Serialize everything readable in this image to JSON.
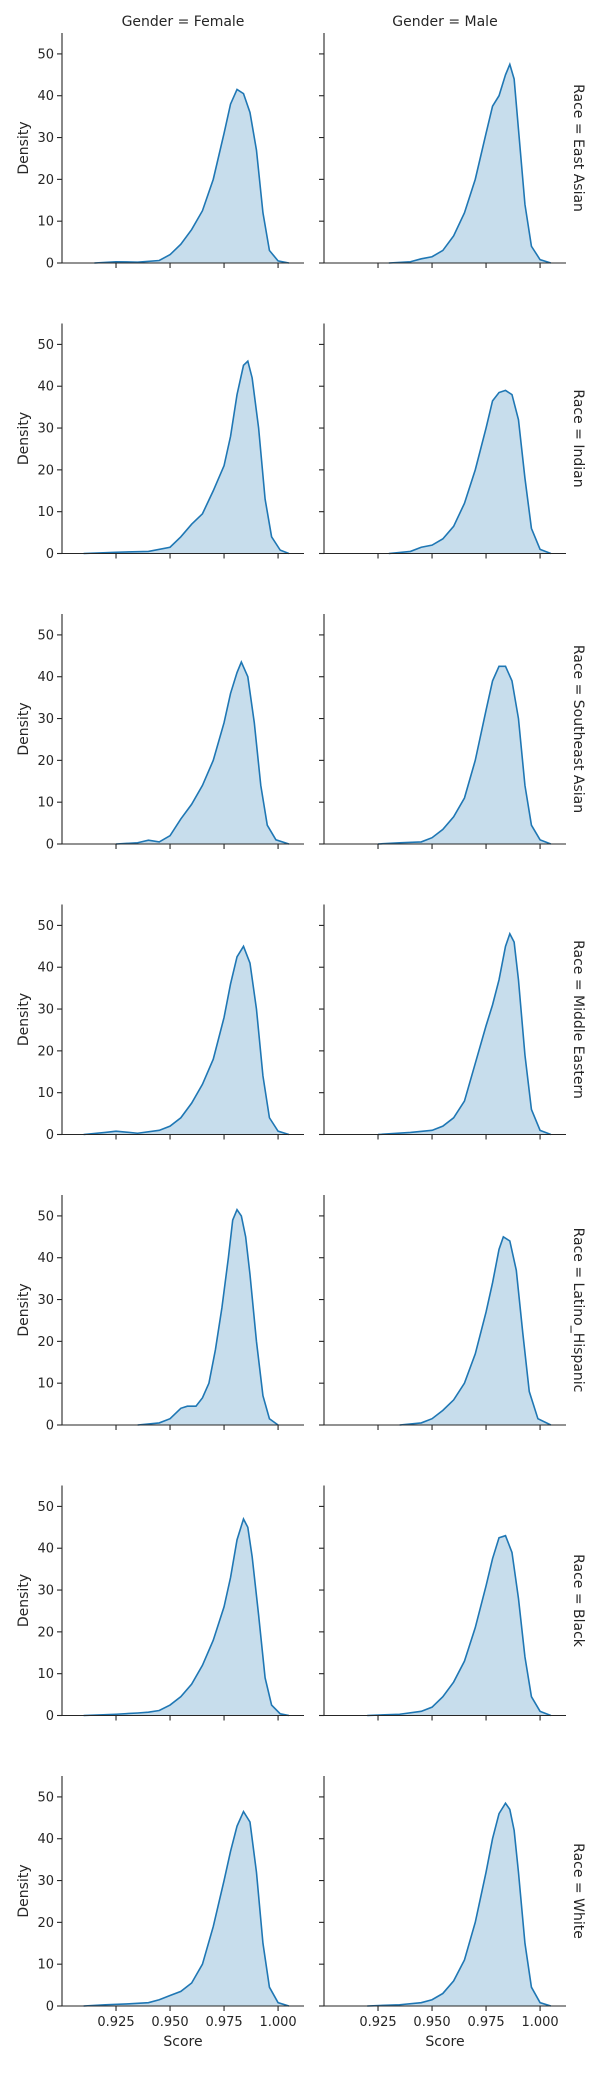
{
  "chart_data": {
    "type": "area",
    "kind": "kde facet grid",
    "col_var": "Gender",
    "row_var": "Race",
    "cols": [
      "Female",
      "Male"
    ],
    "rows": [
      "East Asian",
      "Indian",
      "Southeast Asian",
      "Middle Eastern",
      "Latino_Hispanic",
      "Black",
      "White"
    ],
    "col_titles": [
      "Gender = Female",
      "Gender = Male"
    ],
    "row_titles": [
      "Race = East Asian",
      "Race = Indian",
      "Race = Southeast Asian",
      "Race = Middle Eastern",
      "Race = Latino_Hispanic",
      "Race = Black",
      "Race = White"
    ],
    "xlabel": "Score",
    "ylabel": "Density",
    "xlim": [
      0.9,
      1.012
    ],
    "ylim": [
      0,
      55
    ],
    "xticks": [
      0.925,
      0.95,
      0.975,
      1.0
    ],
    "xtick_labels": [
      "0.925",
      "0.950",
      "0.975",
      "1.000"
    ],
    "yticks": [
      0,
      10,
      20,
      30,
      40,
      50
    ],
    "ytick_labels": [
      "0",
      "10",
      "20",
      "30",
      "40",
      "50"
    ],
    "color": "#1f77b4",
    "panels": [
      {
        "row": "East Asian",
        "col": "Female",
        "x": [
          0.915,
          0.925,
          0.935,
          0.945,
          0.95,
          0.955,
          0.96,
          0.965,
          0.97,
          0.975,
          0.978,
          0.981,
          0.984,
          0.987,
          0.99,
          0.993,
          0.996,
          1.0,
          1.005
        ],
        "y": [
          0.0,
          0.3,
          0.2,
          0.6,
          2.0,
          4.5,
          8.0,
          12.5,
          20.0,
          31.0,
          38.0,
          41.5,
          40.5,
          36.0,
          27.0,
          12.0,
          3.0,
          0.5,
          0.0
        ]
      },
      {
        "row": "East Asian",
        "col": "Male",
        "x": [
          0.93,
          0.94,
          0.945,
          0.95,
          0.955,
          0.96,
          0.965,
          0.97,
          0.975,
          0.978,
          0.981,
          0.984,
          0.986,
          0.988,
          0.99,
          0.993,
          0.996,
          1.0,
          1.005
        ],
        "y": [
          0.0,
          0.3,
          1.0,
          1.5,
          3.0,
          6.5,
          12.0,
          20.0,
          31.0,
          37.5,
          40.0,
          45.0,
          47.5,
          44.0,
          32.0,
          14.0,
          4.0,
          0.8,
          0.0
        ]
      },
      {
        "row": "Indian",
        "col": "Female",
        "x": [
          0.91,
          0.925,
          0.94,
          0.95,
          0.955,
          0.96,
          0.965,
          0.97,
          0.975,
          0.978,
          0.981,
          0.984,
          0.986,
          0.988,
          0.991,
          0.994,
          0.997,
          1.001,
          1.005
        ],
        "y": [
          0.0,
          0.3,
          0.5,
          1.5,
          4.0,
          7.0,
          9.5,
          15.0,
          21.0,
          28.0,
          38.0,
          45.0,
          46.0,
          42.0,
          30.0,
          13.0,
          4.0,
          0.8,
          0.0
        ]
      },
      {
        "row": "Indian",
        "col": "Male",
        "x": [
          0.93,
          0.94,
          0.945,
          0.95,
          0.955,
          0.96,
          0.965,
          0.97,
          0.975,
          0.978,
          0.981,
          0.984,
          0.987,
          0.99,
          0.993,
          0.996,
          1.0,
          1.005
        ],
        "y": [
          0.0,
          0.5,
          1.5,
          2.0,
          3.5,
          6.5,
          12.0,
          20.0,
          30.0,
          36.5,
          38.5,
          39.0,
          38.0,
          32.0,
          18.0,
          6.0,
          1.0,
          0.0
        ]
      },
      {
        "row": "Southeast Asian",
        "col": "Female",
        "x": [
          0.925,
          0.935,
          0.94,
          0.945,
          0.95,
          0.955,
          0.96,
          0.965,
          0.97,
          0.975,
          0.978,
          0.981,
          0.983,
          0.986,
          0.989,
          0.992,
          0.995,
          0.999,
          1.005
        ],
        "y": [
          0.0,
          0.3,
          0.9,
          0.5,
          2.0,
          6.0,
          9.5,
          14.0,
          20.0,
          29.0,
          36.0,
          41.0,
          43.5,
          40.0,
          29.0,
          14.0,
          4.5,
          1.0,
          0.0
        ]
      },
      {
        "row": "Southeast Asian",
        "col": "Male",
        "x": [
          0.925,
          0.935,
          0.945,
          0.95,
          0.955,
          0.96,
          0.965,
          0.97,
          0.975,
          0.978,
          0.981,
          0.984,
          0.987,
          0.99,
          0.993,
          0.996,
          1.0,
          1.005
        ],
        "y": [
          0.0,
          0.3,
          0.5,
          1.5,
          3.5,
          6.5,
          11.0,
          20.0,
          32.0,
          39.0,
          42.5,
          42.5,
          39.0,
          30.0,
          14.0,
          4.5,
          1.0,
          0.0
        ]
      },
      {
        "row": "Middle Eastern",
        "col": "Female",
        "x": [
          0.91,
          0.92,
          0.925,
          0.935,
          0.945,
          0.95,
          0.955,
          0.96,
          0.965,
          0.97,
          0.975,
          0.978,
          0.981,
          0.984,
          0.987,
          0.99,
          0.993,
          0.996,
          1.0,
          1.005
        ],
        "y": [
          0.0,
          0.5,
          0.8,
          0.3,
          1.0,
          2.0,
          4.0,
          7.5,
          12.0,
          18.0,
          28.0,
          36.0,
          42.5,
          45.0,
          41.0,
          30.0,
          14.0,
          4.0,
          0.8,
          0.0
        ]
      },
      {
        "row": "Middle Eastern",
        "col": "Male",
        "x": [
          0.925,
          0.94,
          0.95,
          0.955,
          0.96,
          0.965,
          0.97,
          0.975,
          0.978,
          0.981,
          0.984,
          0.986,
          0.988,
          0.99,
          0.993,
          0.996,
          1.0,
          1.005
        ],
        "y": [
          0.0,
          0.5,
          1.0,
          2.0,
          4.0,
          8.0,
          17.0,
          26.0,
          31.0,
          37.0,
          45.0,
          48.0,
          46.0,
          37.0,
          19.0,
          6.0,
          1.0,
          0.0
        ]
      },
      {
        "row": "Latino_Hispanic",
        "col": "Female",
        "x": [
          0.935,
          0.945,
          0.95,
          0.955,
          0.958,
          0.962,
          0.965,
          0.968,
          0.971,
          0.974,
          0.977,
          0.979,
          0.981,
          0.983,
          0.985,
          0.987,
          0.99,
          0.993,
          0.996,
          1.0
        ],
        "y": [
          0.0,
          0.5,
          1.5,
          4.0,
          4.5,
          4.5,
          6.5,
          10.0,
          18.0,
          28.0,
          40.0,
          49.0,
          51.5,
          50.0,
          45.0,
          36.0,
          20.0,
          7.0,
          1.5,
          0.0
        ]
      },
      {
        "row": "Latino_Hispanic",
        "col": "Male",
        "x": [
          0.935,
          0.945,
          0.95,
          0.955,
          0.96,
          0.965,
          0.97,
          0.975,
          0.978,
          0.981,
          0.983,
          0.986,
          0.989,
          0.992,
          0.995,
          0.999,
          1.005
        ],
        "y": [
          0.0,
          0.5,
          1.5,
          3.5,
          6.0,
          10.0,
          17.0,
          27.0,
          34.0,
          42.0,
          45.0,
          44.0,
          37.0,
          22.0,
          8.0,
          1.5,
          0.0
        ]
      },
      {
        "row": "Black",
        "col": "Female",
        "x": [
          0.91,
          0.925,
          0.935,
          0.94,
          0.945,
          0.95,
          0.955,
          0.96,
          0.965,
          0.97,
          0.975,
          0.978,
          0.981,
          0.984,
          0.986,
          0.988,
          0.991,
          0.994,
          0.997,
          1.001,
          1.005
        ],
        "y": [
          0.0,
          0.3,
          0.6,
          0.8,
          1.2,
          2.5,
          4.5,
          7.5,
          12.0,
          18.0,
          26.0,
          33.0,
          42.0,
          47.0,
          45.0,
          38.0,
          24.0,
          9.0,
          2.5,
          0.4,
          0.0
        ]
      },
      {
        "row": "Black",
        "col": "Male",
        "x": [
          0.92,
          0.935,
          0.945,
          0.95,
          0.955,
          0.96,
          0.965,
          0.97,
          0.975,
          0.978,
          0.981,
          0.984,
          0.987,
          0.99,
          0.993,
          0.996,
          1.0,
          1.005
        ],
        "y": [
          0.0,
          0.3,
          1.0,
          2.0,
          4.5,
          8.0,
          13.0,
          21.0,
          31.0,
          37.5,
          42.5,
          43.0,
          39.0,
          28.0,
          14.0,
          4.5,
          1.0,
          0.0
        ]
      },
      {
        "row": "White",
        "col": "Female",
        "x": [
          0.91,
          0.92,
          0.93,
          0.94,
          0.945,
          0.95,
          0.955,
          0.96,
          0.965,
          0.97,
          0.975,
          0.978,
          0.981,
          0.984,
          0.987,
          0.99,
          0.993,
          0.996,
          1.0,
          1.005
        ],
        "y": [
          0.0,
          0.3,
          0.5,
          0.8,
          1.5,
          2.5,
          3.5,
          5.5,
          10.0,
          19.0,
          30.0,
          37.0,
          43.0,
          46.5,
          44.0,
          32.0,
          15.0,
          4.5,
          0.8,
          0.0
        ]
      },
      {
        "row": "White",
        "col": "Male",
        "x": [
          0.92,
          0.935,
          0.945,
          0.95,
          0.955,
          0.96,
          0.965,
          0.97,
          0.975,
          0.978,
          0.981,
          0.984,
          0.986,
          0.988,
          0.99,
          0.993,
          0.996,
          1.0,
          1.005
        ],
        "y": [
          0.0,
          0.3,
          0.8,
          1.5,
          3.0,
          6.0,
          11.0,
          20.0,
          32.0,
          40.0,
          46.0,
          48.5,
          47.0,
          42.0,
          32.0,
          15.0,
          4.5,
          0.8,
          0.0
        ]
      }
    ]
  }
}
